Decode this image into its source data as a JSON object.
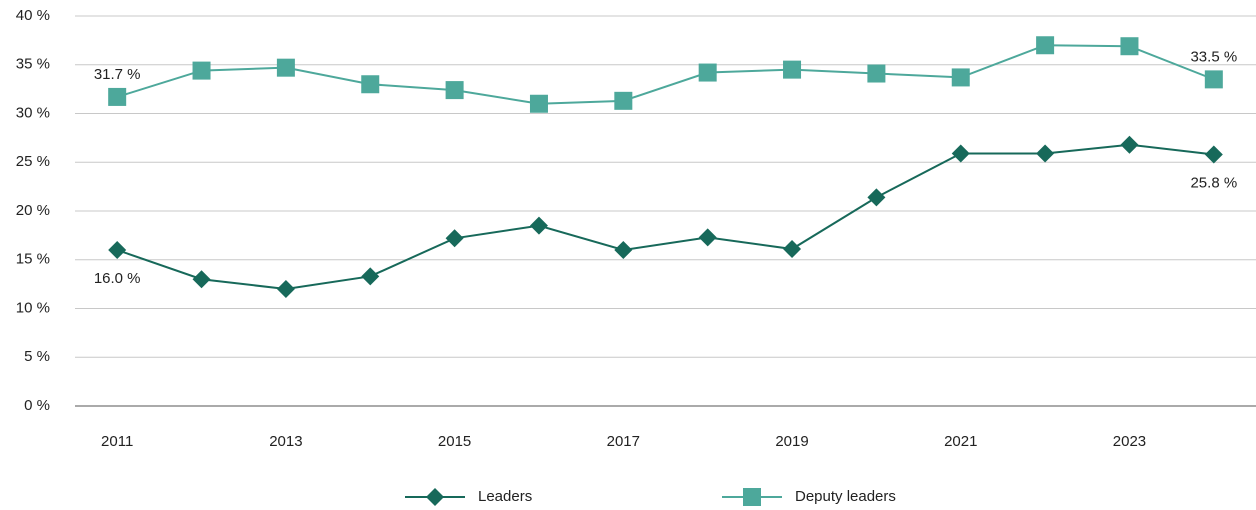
{
  "chart_data": {
    "type": "line",
    "categories": [
      "2011",
      null,
      "2013",
      null,
      "2015",
      null,
      "2017",
      null,
      "2019",
      null,
      "2021",
      null,
      "2023",
      null
    ],
    "series": [
      {
        "name": "Leaders",
        "color": "#17695a",
        "marker": "diamond",
        "label_position": "below",
        "values": [
          16.0,
          13.0,
          12.0,
          13.3,
          17.2,
          18.5,
          16.0,
          17.3,
          16.1,
          21.4,
          25.9,
          25.9,
          26.8,
          25.8
        ],
        "value_labels": [
          "16.0 %",
          null,
          null,
          null,
          null,
          null,
          null,
          null,
          null,
          null,
          null,
          null,
          null,
          "25.8 %"
        ]
      },
      {
        "name": "Deputy leaders",
        "color": "#4da89b",
        "marker": "square",
        "label_position": "above",
        "values": [
          31.7,
          34.4,
          34.7,
          33.0,
          32.4,
          31.0,
          31.3,
          34.2,
          34.5,
          34.1,
          33.7,
          37.0,
          36.9,
          33.5
        ],
        "value_labels": [
          "31.7 %",
          null,
          null,
          null,
          null,
          null,
          null,
          null,
          null,
          null,
          null,
          null,
          null,
          "33.5 %"
        ]
      }
    ],
    "ylim": [
      0,
      40
    ],
    "yticks": [
      {
        "value": 0,
        "label": "0 %"
      },
      {
        "value": 5,
        "label": "5 %"
      },
      {
        "value": 10,
        "label": "10 %"
      },
      {
        "value": 15,
        "label": "15 %"
      },
      {
        "value": 20,
        "label": "20 %"
      },
      {
        "value": 25,
        "label": "25 %"
      },
      {
        "value": 30,
        "label": "30 %"
      },
      {
        "value": 35,
        "label": "35 %"
      },
      {
        "value": 40,
        "label": "40 %"
      }
    ],
    "grid": true,
    "legend": "bottom"
  }
}
